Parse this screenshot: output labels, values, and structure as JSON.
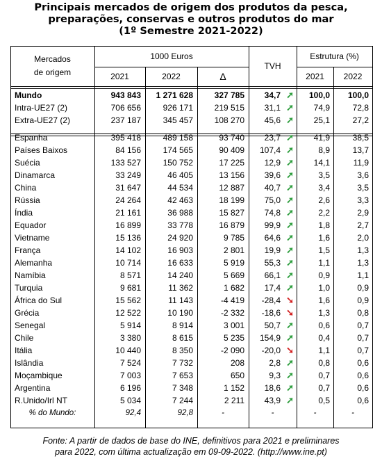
{
  "title": {
    "line1": "Principais mercados de origem dos produtos da pesca,",
    "line2": "preparações, conservas e outros produtos do mar",
    "line3": "(1º Semestre 2021-2022)"
  },
  "header": {
    "markets": "Mercados",
    "markets2": "de origem",
    "euros": "1000 Euros",
    "tvh": "TVH",
    "structure": "Estrutura (%)",
    "y2021": "2021",
    "y2022": "2022",
    "delta": "Δ",
    "s2021": "2021",
    "s2022": "2022"
  },
  "top_rows": [
    {
      "name": "Mundo",
      "v2021": "943 843",
      "v2022": "1 271 628",
      "delta": "327 785",
      "tvh": "34,7",
      "dir": "up",
      "s2021": "100,0",
      "s2022": "100,0"
    },
    {
      "name": "Intra-UE27  (2)",
      "v2021": "706 656",
      "v2022": "926 171",
      "delta": "219 515",
      "tvh": "31,1",
      "dir": "up",
      "s2021": "74,9",
      "s2022": "72,8"
    },
    {
      "name": "Extra-UE27 (2)",
      "v2021": "237 187",
      "v2022": "345 457",
      "delta": "108 270",
      "tvh": "45,6",
      "dir": "up",
      "s2021": "25,1",
      "s2022": "27,2"
    }
  ],
  "rows": [
    {
      "name": "Espanha",
      "v2021": "395 418",
      "v2022": "489 158",
      "delta": "93 740",
      "tvh": "23,7",
      "dir": "up",
      "s2021": "41,9",
      "s2022": "38,5"
    },
    {
      "name": "Países Baixos",
      "v2021": "84 156",
      "v2022": "174 565",
      "delta": "90 409",
      "tvh": "107,4",
      "dir": "up",
      "s2021": "8,9",
      "s2022": "13,7"
    },
    {
      "name": "Suécia",
      "v2021": "133 527",
      "v2022": "150 752",
      "delta": "17 225",
      "tvh": "12,9",
      "dir": "up",
      "s2021": "14,1",
      "s2022": "11,9"
    },
    {
      "name": "Dinamarca",
      "v2021": "33 249",
      "v2022": "46 405",
      "delta": "13 156",
      "tvh": "39,6",
      "dir": "up",
      "s2021": "3,5",
      "s2022": "3,6"
    },
    {
      "name": "China",
      "v2021": "31 647",
      "v2022": "44 534",
      "delta": "12 887",
      "tvh": "40,7",
      "dir": "up",
      "s2021": "3,4",
      "s2022": "3,5"
    },
    {
      "name": "Rússia",
      "v2021": "24 264",
      "v2022": "42 463",
      "delta": "18 199",
      "tvh": "75,0",
      "dir": "up",
      "s2021": "2,6",
      "s2022": "3,3"
    },
    {
      "name": "Índia",
      "v2021": "21 161",
      "v2022": "36 988",
      "delta": "15 827",
      "tvh": "74,8",
      "dir": "up",
      "s2021": "2,2",
      "s2022": "2,9"
    },
    {
      "name": "Equador",
      "v2021": "16 899",
      "v2022": "33 778",
      "delta": "16 879",
      "tvh": "99,9",
      "dir": "up",
      "s2021": "1,8",
      "s2022": "2,7"
    },
    {
      "name": "Vietname",
      "v2021": "15 136",
      "v2022": "24 920",
      "delta": "9 785",
      "tvh": "64,6",
      "dir": "up",
      "s2021": "1,6",
      "s2022": "2,0"
    },
    {
      "name": "França",
      "v2021": "14 102",
      "v2022": "16 903",
      "delta": "2 801",
      "tvh": "19,9",
      "dir": "up",
      "s2021": "1,5",
      "s2022": "1,3"
    },
    {
      "name": "Alemanha",
      "v2021": "10 714",
      "v2022": "16 633",
      "delta": "5 919",
      "tvh": "55,3",
      "dir": "up",
      "s2021": "1,1",
      "s2022": "1,3"
    },
    {
      "name": "Namíbia",
      "v2021": "8 571",
      "v2022": "14 240",
      "delta": "5 669",
      "tvh": "66,1",
      "dir": "up",
      "s2021": "0,9",
      "s2022": "1,1"
    },
    {
      "name": "Turquia",
      "v2021": "9 681",
      "v2022": "11 362",
      "delta": "1 682",
      "tvh": "17,4",
      "dir": "up",
      "s2021": "1,0",
      "s2022": "0,9"
    },
    {
      "name": "África do Sul",
      "v2021": "15 562",
      "v2022": "11 143",
      "delta": "-4 419",
      "tvh": "-28,4",
      "dir": "down",
      "s2021": "1,6",
      "s2022": "0,9"
    },
    {
      "name": "Grécia",
      "v2021": "12 522",
      "v2022": "10 190",
      "delta": "-2 332",
      "tvh": "-18,6",
      "dir": "down",
      "s2021": "1,3",
      "s2022": "0,8"
    },
    {
      "name": "Senegal",
      "v2021": "5 914",
      "v2022": "8 914",
      "delta": "3 001",
      "tvh": "50,7",
      "dir": "up",
      "s2021": "0,6",
      "s2022": "0,7"
    },
    {
      "name": "Chile",
      "v2021": "3 380",
      "v2022": "8 615",
      "delta": "5 235",
      "tvh": "154,9",
      "dir": "up",
      "s2021": "0,4",
      "s2022": "0,7"
    },
    {
      "name": "Itália",
      "v2021": "10 440",
      "v2022": "8 350",
      "delta": "-2 090",
      "tvh": "-20,0",
      "dir": "down",
      "s2021": "1,1",
      "s2022": "0,7"
    },
    {
      "name": "Islândia",
      "v2021": "7 524",
      "v2022": "7 732",
      "delta": "208",
      "tvh": "2,8",
      "dir": "up",
      "s2021": "0,8",
      "s2022": "0,6"
    },
    {
      "name": "Moçambique",
      "v2021": "7 003",
      "v2022": "7 653",
      "delta": "650",
      "tvh": "9,3",
      "dir": "up",
      "s2021": "0,7",
      "s2022": "0,6"
    },
    {
      "name": "Argentina",
      "v2021": "6 196",
      "v2022": "7 348",
      "delta": "1 152",
      "tvh": "18,6",
      "dir": "up",
      "s2021": "0,7",
      "s2022": "0,6"
    },
    {
      "name": "R.Unido/Irl NT",
      "v2021": "5 034",
      "v2022": "7 244",
      "delta": "2 211",
      "tvh": "43,9",
      "dir": "up",
      "s2021": "0,5",
      "s2022": "0,6"
    }
  ],
  "pct_row": {
    "name": "% do Mundo:",
    "v2021": "92,4",
    "v2022": "92,8",
    "delta": "-",
    "tvh": "-",
    "s2021": "-",
    "s2022": "-"
  },
  "arrows": {
    "up": "➚",
    "down": "➘"
  },
  "colors": {
    "up": "#2e9e3e",
    "down": "#d21f1f"
  },
  "footer": {
    "line1": "Fonte: A partir de dados de base do INE, definitivos para 2021 e preliminares",
    "line2": "para 2022, com última actualização em 09-09-2022.   (http://www.ine.pt)"
  }
}
